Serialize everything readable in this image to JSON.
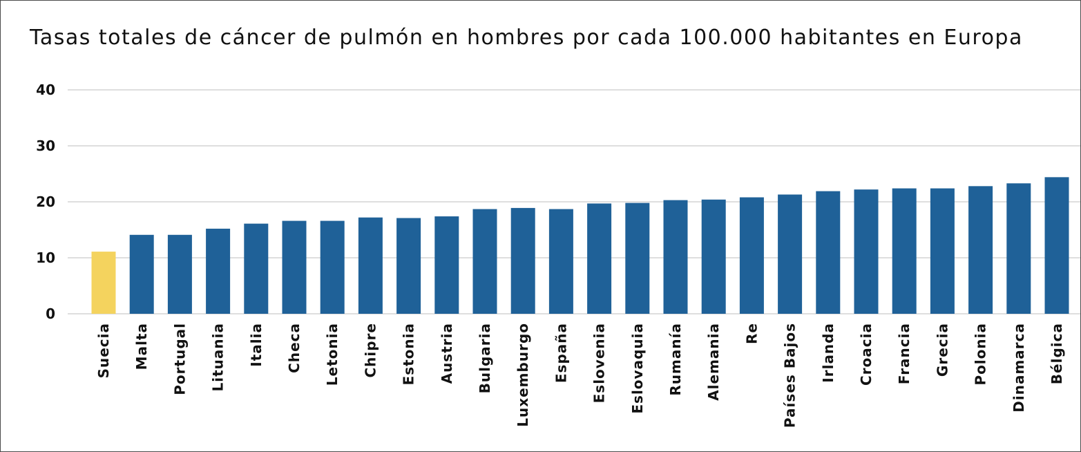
{
  "title": "Tasas totales de cáncer de pulmón en hombres por cada 100.000 habitantes en Europa",
  "colors": {
    "highlight": "#f4d35e",
    "bar": "#1f6198",
    "grid": "#bdbdbd"
  },
  "chart_data": {
    "type": "bar",
    "title": "Tasas totales de cáncer de pulmón en hombres por cada 100.000 habitantes en Europa",
    "xlabel": "",
    "ylabel": "",
    "ylim": [
      0,
      40
    ],
    "yticks": [
      0,
      10,
      20,
      30,
      40
    ],
    "grid": true,
    "highlight_category": "Suecia",
    "categories": [
      "Suecia",
      "Malta",
      "Portugal",
      "Lituania",
      "Italia",
      "Checa",
      "Letonia",
      "Chipre",
      "Estonia",
      "Austria",
      "Bulgaria",
      "Luxemburgo",
      "España",
      "Eslovenia",
      "Eslovaquia",
      "Rumanía",
      "Alemania",
      "Re",
      "Países Bajos",
      "Irlanda",
      "Croacia",
      "Francia",
      "Grecia",
      "Polonia",
      "Dinamarca",
      "Bélgica"
    ],
    "values": [
      11.1,
      14.1,
      14.1,
      15.2,
      16.1,
      16.6,
      16.6,
      17.2,
      17.1,
      17.4,
      18.7,
      18.9,
      18.7,
      19.7,
      19.8,
      20.3,
      20.4,
      20.8,
      21.3,
      21.9,
      22.2,
      22.4,
      22.4,
      22.8,
      23.3,
      24.4
    ]
  }
}
